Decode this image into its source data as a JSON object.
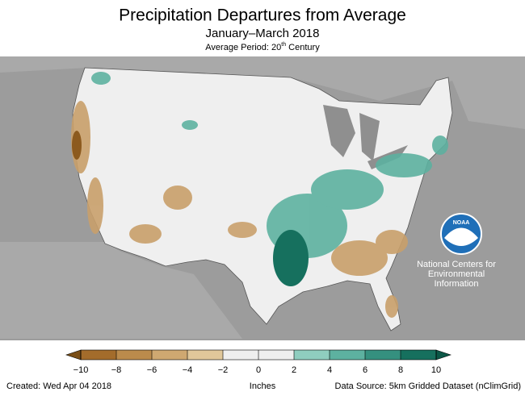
{
  "header": {
    "title": "Precipitation Departures from Average",
    "subtitle": "January–March 2018",
    "period": {
      "before": "Average Period: 20",
      "sup": "th",
      "after": " Century"
    }
  },
  "logo": {
    "badge": "NOAA",
    "lines": [
      "National Centers for",
      "Environmental",
      "Information"
    ]
  },
  "legend": {
    "range": [
      -10,
      10
    ],
    "unit": "Inches",
    "ticks": [
      {
        "value": -10,
        "label": "−10"
      },
      {
        "value": -8,
        "label": "−8"
      },
      {
        "value": -6,
        "label": "−6"
      },
      {
        "value": -4,
        "label": "−4"
      },
      {
        "value": -2,
        "label": "−2"
      },
      0,
      2,
      4,
      6,
      8,
      10
    ],
    "colors": [
      "#a36c2b",
      "#bb8b4c",
      "#cfa871",
      "#e0c79a",
      "#efefef",
      "#efefef",
      "#8fcdbf",
      "#5db1a0",
      "#35907f",
      "#16705e"
    ],
    "under_color": "#7a4e17",
    "over_color": "#0c5747"
  },
  "footer": {
    "created": "Created: Wed Apr 04 2018",
    "source": "Data Source: 5km Gridded Dataset (nClimGrid)"
  }
}
